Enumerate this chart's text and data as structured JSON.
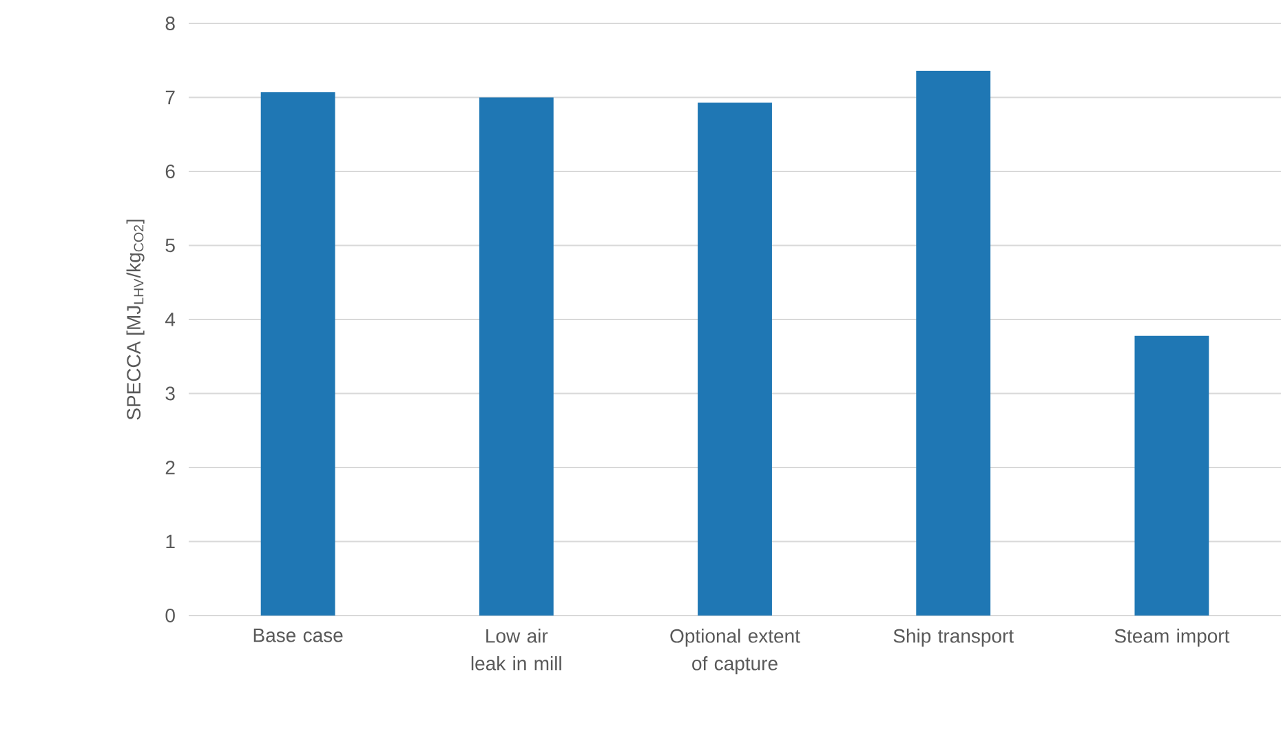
{
  "chart_data": {
    "type": "bar",
    "ylabel": "SPECCA [MJ$_{LHV}$/kg$_{CO2}$]",
    "categories": [
      "Base case",
      "Low air leak in mill",
      "Optional extent of capture",
      "Ship transport",
      "Steam import"
    ],
    "values": [
      7.07,
      7.0,
      6.93,
      7.36,
      3.78
    ],
    "color": "#1f77b4",
    "ylim": [
      0,
      8
    ],
    "yticks": [
      0,
      1,
      2,
      3,
      4,
      5,
      6,
      7,
      8
    ],
    "grid": "y"
  }
}
